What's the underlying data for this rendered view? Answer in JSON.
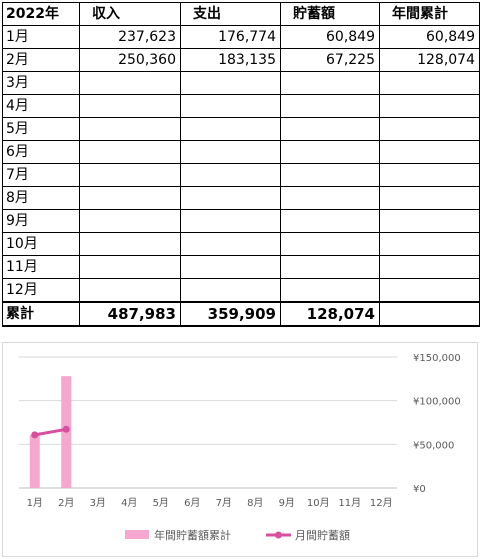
{
  "table": {
    "headers": [
      "2022年",
      "収入",
      "支出",
      "貯蓄額",
      "年間累計"
    ],
    "rows": [
      [
        "1月",
        "237,623",
        "176,774",
        "60,849",
        "60,849"
      ],
      [
        "2月",
        "250,360",
        "183,135",
        "67,225",
        "128,074"
      ],
      [
        "3月",
        "",
        "",
        "",
        ""
      ],
      [
        "4月",
        "",
        "",
        "",
        ""
      ],
      [
        "5月",
        "",
        "",
        "",
        ""
      ],
      [
        "6月",
        "",
        "",
        "",
        ""
      ],
      [
        "7月",
        "",
        "",
        "",
        ""
      ],
      [
        "8月",
        "",
        "",
        "",
        ""
      ],
      [
        "9月",
        "",
        "",
        "",
        ""
      ],
      [
        "10月",
        "",
        "",
        "",
        ""
      ],
      [
        "11月",
        "",
        "",
        "",
        ""
      ],
      [
        "12月",
        "",
        "",
        "",
        ""
      ]
    ],
    "total": [
      "累計",
      "487,983",
      "359,909",
      "128,074",
      ""
    ]
  },
  "chart_data": {
    "type": "bar",
    "categories": [
      "1月",
      "2月",
      "3月",
      "4月",
      "5月",
      "6月",
      "7月",
      "8月",
      "9月",
      "10月",
      "11月",
      "12月"
    ],
    "series": [
      {
        "name": "年間貯蓄額累計",
        "type": "bar",
        "values": [
          60849,
          128074,
          null,
          null,
          null,
          null,
          null,
          null,
          null,
          null,
          null,
          null
        ],
        "color": "#f4a7cf"
      },
      {
        "name": "月間貯蓄額",
        "type": "line",
        "values": [
          60849,
          67225,
          null,
          null,
          null,
          null,
          null,
          null,
          null,
          null,
          null,
          null
        ],
        "color": "#d94f9e"
      }
    ],
    "y_ticks": [
      "¥0",
      "¥50,000",
      "¥100,000",
      "¥150,000"
    ],
    "ylim": [
      0,
      150000
    ],
    "y_axis_side": "right",
    "grid": true,
    "legend": "bottom"
  }
}
